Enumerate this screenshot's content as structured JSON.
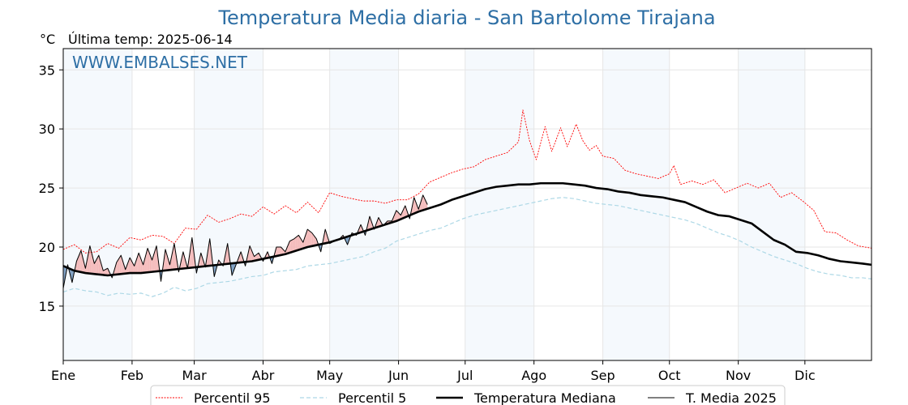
{
  "header": {
    "title": "Temperatura Media diaria - San Bartolome Tirajana",
    "unit": "°C",
    "last_temp": "Última temp: 2025-06-14",
    "watermark": "WWW.EMBALSES.NET"
  },
  "colors": {
    "title": "#2e6fa5",
    "p95": "#ff0000",
    "p5": "#add8e6",
    "median": "#000000",
    "current": "#000000",
    "above_fill": "#f4b6b6",
    "below_fill": "#7196bd",
    "band": "#f5f9fd",
    "grid": "#e6e6e6"
  },
  "chart_data": {
    "type": "line",
    "title": "Temperatura Media diaria - San Bartolome Tirajana",
    "xlabel": "",
    "ylabel": "°C",
    "x_unit": "day_of_year",
    "ylim": [
      10.4,
      36.8
    ],
    "y_ticks": [
      15,
      20,
      25,
      30,
      35
    ],
    "x_tick_labels": [
      "Ene",
      "Feb",
      "Mar",
      "Abr",
      "May",
      "Jun",
      "Jul",
      "Ago",
      "Sep",
      "Oct",
      "Nov",
      "Dic"
    ],
    "x_tick_days": [
      1,
      32,
      60,
      91,
      121,
      152,
      182,
      213,
      244,
      274,
      305,
      335
    ],
    "grid": true,
    "legend_position": "bottom",
    "series": [
      {
        "name": "Percentil 95",
        "style": "dotted-red",
        "x": [
          1,
          6,
          11,
          16,
          21,
          26,
          31,
          36,
          41,
          46,
          51,
          56,
          61,
          66,
          71,
          76,
          81,
          86,
          91,
          96,
          101,
          106,
          111,
          116,
          121,
          126,
          131,
          136,
          141,
          146,
          151,
          156,
          161,
          166,
          171,
          176,
          181,
          186,
          191,
          196,
          201,
          206,
          208,
          211,
          214,
          218,
          221,
          225,
          228,
          232,
          235,
          238,
          241,
          244,
          249,
          254,
          259,
          264,
          269,
          274,
          276,
          279,
          284,
          289,
          294,
          299,
          304,
          309,
          314,
          319,
          324,
          329,
          334,
          339,
          344,
          349,
          354,
          359,
          365
        ],
        "y": [
          19.8,
          20.2,
          19.5,
          19.6,
          20.3,
          19.9,
          20.8,
          20.6,
          21.0,
          20.9,
          20.3,
          21.6,
          21.5,
          22.7,
          22.1,
          22.4,
          22.8,
          22.6,
          23.4,
          22.8,
          23.5,
          22.9,
          23.8,
          22.9,
          24.6,
          24.3,
          24.1,
          23.9,
          23.9,
          23.7,
          24.0,
          24.0,
          24.5,
          25.5,
          25.9,
          26.3,
          26.6,
          26.8,
          27.4,
          27.7,
          28.0,
          28.9,
          31.6,
          29.0,
          27.4,
          30.2,
          28.1,
          30.1,
          28.5,
          30.4,
          29.0,
          28.2,
          28.6,
          27.7,
          27.5,
          26.5,
          26.2,
          26.0,
          25.8,
          26.2,
          26.9,
          25.3,
          25.6,
          25.3,
          25.7,
          24.6,
          25.0,
          25.4,
          25.0,
          25.4,
          24.2,
          24.6,
          23.9,
          23.1,
          21.3,
          21.2,
          20.6,
          20.1,
          19.9
        ]
      },
      {
        "name": "Percentil 5",
        "style": "dashed-lightblue",
        "x": [
          1,
          6,
          11,
          16,
          21,
          26,
          31,
          36,
          41,
          46,
          51,
          56,
          61,
          66,
          71,
          76,
          81,
          86,
          91,
          96,
          101,
          106,
          111,
          116,
          121,
          126,
          131,
          136,
          141,
          146,
          151,
          156,
          161,
          166,
          171,
          176,
          181,
          186,
          191,
          196,
          201,
          206,
          211,
          216,
          221,
          226,
          231,
          236,
          241,
          246,
          251,
          256,
          261,
          266,
          271,
          276,
          281,
          286,
          291,
          296,
          301,
          306,
          311,
          316,
          321,
          326,
          331,
          336,
          341,
          346,
          351,
          356,
          361,
          365
        ],
        "y": [
          16.2,
          16.5,
          16.3,
          16.2,
          15.9,
          16.1,
          16.0,
          16.1,
          15.8,
          16.1,
          16.6,
          16.3,
          16.5,
          16.9,
          17.0,
          17.1,
          17.3,
          17.5,
          17.6,
          17.9,
          18.0,
          18.1,
          18.4,
          18.5,
          18.6,
          18.8,
          19.0,
          19.2,
          19.6,
          19.9,
          20.5,
          20.8,
          21.1,
          21.4,
          21.6,
          22.0,
          22.4,
          22.7,
          22.9,
          23.1,
          23.3,
          23.5,
          23.7,
          23.9,
          24.1,
          24.2,
          24.1,
          23.9,
          23.7,
          23.6,
          23.5,
          23.3,
          23.1,
          22.9,
          22.7,
          22.5,
          22.3,
          22.0,
          21.6,
          21.2,
          20.9,
          20.5,
          20.0,
          19.6,
          19.2,
          18.9,
          18.6,
          18.2,
          17.9,
          17.7,
          17.6,
          17.4,
          17.4,
          17.3
        ]
      },
      {
        "name": "Temperatura Mediana",
        "style": "thick-black",
        "x": [
          1,
          6,
          11,
          16,
          21,
          26,
          31,
          36,
          41,
          46,
          51,
          56,
          61,
          66,
          71,
          76,
          81,
          86,
          91,
          96,
          101,
          106,
          111,
          116,
          121,
          126,
          131,
          136,
          141,
          146,
          151,
          156,
          161,
          166,
          171,
          176,
          181,
          186,
          191,
          196,
          201,
          206,
          211,
          216,
          221,
          226,
          231,
          236,
          241,
          246,
          251,
          256,
          261,
          266,
          271,
          276,
          281,
          286,
          291,
          296,
          301,
          306,
          311,
          316,
          321,
          326,
          331,
          336,
          341,
          346,
          351,
          356,
          361,
          365
        ],
        "y": [
          18.4,
          18.0,
          17.8,
          17.7,
          17.6,
          17.7,
          17.8,
          17.8,
          17.9,
          18.0,
          18.1,
          18.2,
          18.3,
          18.4,
          18.5,
          18.6,
          18.7,
          18.8,
          19.0,
          19.2,
          19.4,
          19.7,
          20.0,
          20.2,
          20.4,
          20.7,
          21.0,
          21.3,
          21.6,
          21.9,
          22.2,
          22.6,
          23.0,
          23.3,
          23.6,
          24.0,
          24.3,
          24.6,
          24.9,
          25.1,
          25.2,
          25.3,
          25.3,
          25.4,
          25.4,
          25.4,
          25.3,
          25.2,
          25.0,
          24.9,
          24.7,
          24.6,
          24.4,
          24.3,
          24.2,
          24.0,
          23.8,
          23.4,
          23.0,
          22.7,
          22.6,
          22.3,
          22.0,
          21.3,
          20.6,
          20.2,
          19.6,
          19.5,
          19.3,
          19.0,
          18.8,
          18.7,
          18.6,
          18.5
        ]
      },
      {
        "name": "T. Media 2025",
        "style": "thin-black",
        "x": [
          1,
          3,
          5,
          7,
          9,
          11,
          13,
          15,
          17,
          19,
          21,
          23,
          25,
          27,
          29,
          31,
          33,
          35,
          37,
          39,
          41,
          43,
          45,
          47,
          49,
          51,
          53,
          55,
          57,
          59,
          61,
          63,
          65,
          67,
          69,
          71,
          73,
          75,
          77,
          79,
          81,
          83,
          85,
          87,
          89,
          91,
          93,
          95,
          97,
          99,
          101,
          103,
          105,
          107,
          109,
          111,
          113,
          115,
          117,
          119,
          121,
          123,
          125,
          127,
          129,
          131,
          133,
          135,
          137,
          139,
          141,
          143,
          145,
          147,
          149,
          151,
          153,
          155,
          157,
          159,
          161,
          163,
          165
        ],
        "y": [
          16.5,
          18.5,
          17.0,
          18.8,
          19.7,
          18.2,
          20.1,
          18.6,
          19.3,
          18.0,
          18.2,
          17.4,
          18.7,
          19.3,
          18.1,
          19.1,
          18.4,
          19.5,
          18.5,
          19.9,
          18.9,
          20.1,
          17.1,
          19.8,
          18.5,
          20.3,
          17.9,
          19.6,
          18.2,
          20.8,
          17.8,
          19.5,
          18.3,
          20.7,
          17.5,
          18.9,
          18.4,
          20.3,
          17.6,
          18.6,
          19.6,
          18.4,
          20.1,
          19.2,
          19.5,
          18.8,
          19.6,
          18.6,
          20.0,
          20.0,
          19.6,
          20.5,
          20.7,
          21.0,
          20.4,
          21.5,
          21.2,
          20.7,
          19.6,
          21.5,
          20.3,
          20.5,
          20.6,
          21.0,
          20.2,
          21.2,
          21.0,
          21.9,
          21.0,
          22.6,
          21.5,
          22.5,
          21.8,
          22.2,
          22.2,
          23.1,
          22.7,
          23.5,
          22.4,
          24.2,
          23.2,
          24.4,
          23.6
        ]
      }
    ]
  },
  "legend": {
    "items": [
      {
        "label": "Percentil 95"
      },
      {
        "label": "Percentil 5"
      },
      {
        "label": "Temperatura Mediana"
      },
      {
        "label": "T. Media 2025"
      }
    ]
  }
}
